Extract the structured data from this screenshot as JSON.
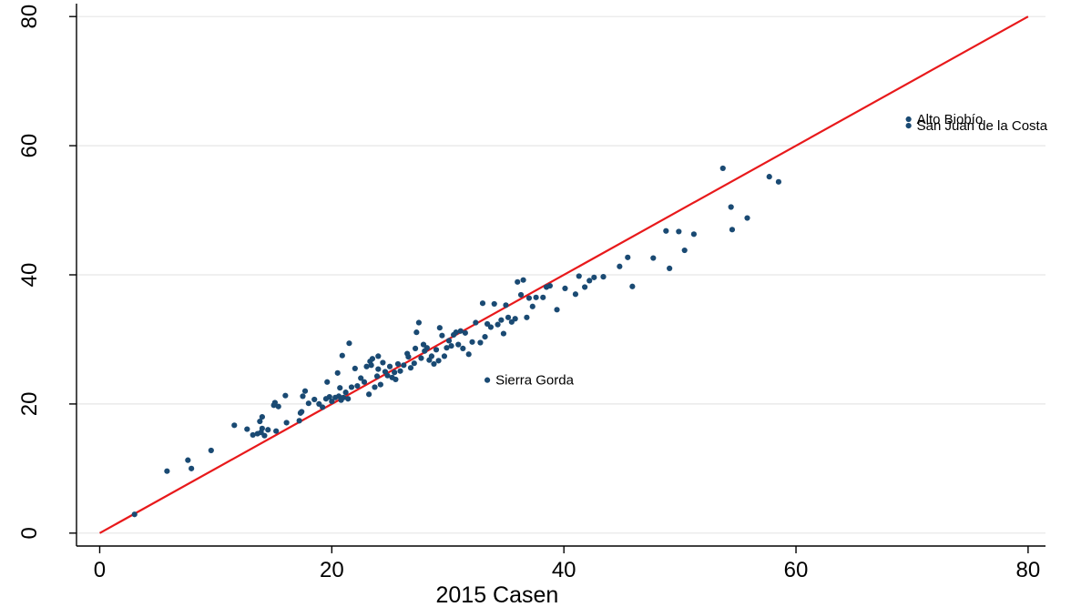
{
  "chart_data": {
    "type": "scatter",
    "title": "",
    "xlabel": "2015 Casen",
    "ylabel": "",
    "xlim": [
      -2,
      81.5
    ],
    "ylim": [
      -2,
      82
    ],
    "x_ticks": [
      0,
      20,
      40,
      60,
      80
    ],
    "y_ticks": [
      0,
      20,
      40,
      60,
      80
    ],
    "x_tick_labels": [
      "0",
      "20",
      "40",
      "60",
      "80"
    ],
    "y_tick_labels": [
      "0",
      "20",
      "40",
      "60",
      "80"
    ],
    "grid": "horizontal",
    "legend": "none",
    "reference_line": {
      "from": [
        0,
        0
      ],
      "to": [
        80,
        80
      ],
      "color": "#e8191b"
    },
    "marker_color": "#1a4a73",
    "annotations": [
      {
        "text": "Alto Biobío",
        "x": 69.7,
        "y": 64.1
      },
      {
        "text": "San Juan de la Costa",
        "x": 69.7,
        "y": 63.1
      },
      {
        "text": "Sierra Gorda",
        "x": 33.4,
        "y": 23.7
      }
    ],
    "points": [
      [
        3.0,
        2.9
      ],
      [
        5.8,
        9.6
      ],
      [
        7.6,
        11.3
      ],
      [
        7.9,
        10.0
      ],
      [
        9.6,
        12.8
      ],
      [
        11.6,
        16.7
      ],
      [
        12.7,
        16.1
      ],
      [
        13.2,
        15.2
      ],
      [
        13.6,
        15.4
      ],
      [
        13.8,
        17.3
      ],
      [
        14.0,
        18.0
      ],
      [
        13.9,
        15.6
      ],
      [
        14.2,
        15.1
      ],
      [
        14.5,
        16.0
      ],
      [
        14.0,
        16.2
      ],
      [
        15.0,
        19.8
      ],
      [
        15.1,
        20.2
      ],
      [
        15.4,
        19.6
      ],
      [
        15.2,
        15.8
      ],
      [
        16.0,
        21.3
      ],
      [
        16.1,
        17.1
      ],
      [
        17.2,
        17.4
      ],
      [
        17.3,
        18.6
      ],
      [
        17.4,
        18.8
      ],
      [
        17.5,
        21.2
      ],
      [
        17.7,
        22.0
      ],
      [
        18.0,
        20.1
      ],
      [
        18.5,
        20.7
      ],
      [
        18.9,
        20.0
      ],
      [
        19.2,
        19.5
      ],
      [
        19.5,
        20.8
      ],
      [
        19.6,
        23.4
      ],
      [
        19.8,
        21.1
      ],
      [
        20.0,
        20.4
      ],
      [
        20.3,
        21.0
      ],
      [
        20.5,
        24.8
      ],
      [
        20.6,
        21.2
      ],
      [
        20.7,
        22.5
      ],
      [
        20.8,
        20.6
      ],
      [
        20.9,
        27.5
      ],
      [
        21.0,
        21.0
      ],
      [
        21.2,
        21.8
      ],
      [
        21.4,
        20.8
      ],
      [
        21.5,
        29.4
      ],
      [
        21.7,
        22.6
      ],
      [
        22.0,
        25.5
      ],
      [
        22.2,
        22.8
      ],
      [
        22.5,
        24.0
      ],
      [
        22.8,
        23.4
      ],
      [
        23.0,
        25.8
      ],
      [
        23.2,
        21.5
      ],
      [
        23.3,
        26.6
      ],
      [
        23.4,
        26.0
      ],
      [
        23.5,
        27.0
      ],
      [
        23.7,
        22.6
      ],
      [
        23.9,
        24.3
      ],
      [
        24.0,
        25.4
      ],
      [
        24.0,
        27.4
      ],
      [
        24.2,
        23.0
      ],
      [
        24.4,
        26.4
      ],
      [
        24.6,
        25.0
      ],
      [
        24.8,
        24.4
      ],
      [
        25.0,
        25.8
      ],
      [
        25.2,
        24.1
      ],
      [
        25.4,
        24.9
      ],
      [
        25.5,
        23.8
      ],
      [
        25.7,
        26.2
      ],
      [
        25.9,
        25.1
      ],
      [
        26.2,
        26.0
      ],
      [
        26.5,
        27.8
      ],
      [
        26.6,
        27.3
      ],
      [
        26.8,
        25.6
      ],
      [
        27.1,
        26.3
      ],
      [
        27.2,
        28.6
      ],
      [
        27.3,
        31.1
      ],
      [
        27.5,
        32.6
      ],
      [
        27.7,
        27.1
      ],
      [
        27.9,
        29.2
      ],
      [
        28.0,
        28.2
      ],
      [
        28.2,
        28.7
      ],
      [
        28.4,
        26.8
      ],
      [
        28.6,
        27.4
      ],
      [
        28.8,
        26.2
      ],
      [
        29.0,
        28.4
      ],
      [
        29.2,
        26.7
      ],
      [
        29.3,
        31.8
      ],
      [
        29.5,
        30.6
      ],
      [
        29.7,
        27.4
      ],
      [
        29.9,
        28.7
      ],
      [
        30.1,
        29.8
      ],
      [
        30.3,
        29.0
      ],
      [
        30.5,
        30.7
      ],
      [
        30.7,
        31.1
      ],
      [
        30.9,
        29.2
      ],
      [
        31.1,
        31.3
      ],
      [
        31.3,
        28.6
      ],
      [
        31.5,
        31.0
      ],
      [
        31.8,
        27.7
      ],
      [
        32.1,
        29.6
      ],
      [
        32.4,
        32.6
      ],
      [
        32.8,
        29.5
      ],
      [
        33.0,
        35.6
      ],
      [
        33.2,
        30.4
      ],
      [
        33.4,
        32.4
      ],
      [
        33.7,
        31.9
      ],
      [
        34.0,
        35.5
      ],
      [
        34.3,
        32.3
      ],
      [
        34.6,
        33.0
      ],
      [
        34.8,
        30.9
      ],
      [
        35.0,
        35.3
      ],
      [
        35.2,
        33.4
      ],
      [
        35.5,
        32.7
      ],
      [
        35.8,
        33.2
      ],
      [
        36.0,
        38.9
      ],
      [
        36.3,
        36.9
      ],
      [
        36.5,
        39.2
      ],
      [
        36.8,
        33.4
      ],
      [
        37.0,
        36.4
      ],
      [
        37.3,
        35.1
      ],
      [
        37.6,
        36.5
      ],
      [
        38.2,
        36.5
      ],
      [
        38.5,
        38.1
      ],
      [
        38.8,
        38.3
      ],
      [
        39.4,
        34.6
      ],
      [
        40.1,
        37.9
      ],
      [
        41.0,
        37.0
      ],
      [
        41.3,
        39.8
      ],
      [
        41.8,
        38.1
      ],
      [
        42.2,
        39.1
      ],
      [
        42.6,
        39.6
      ],
      [
        43.4,
        39.7
      ],
      [
        44.8,
        41.3
      ],
      [
        45.5,
        42.7
      ],
      [
        45.9,
        38.2
      ],
      [
        47.7,
        42.6
      ],
      [
        48.8,
        46.8
      ],
      [
        49.1,
        41.0
      ],
      [
        49.9,
        46.7
      ],
      [
        50.4,
        43.8
      ],
      [
        51.2,
        46.3
      ],
      [
        53.7,
        56.5
      ],
      [
        54.4,
        50.5
      ],
      [
        54.5,
        47.0
      ],
      [
        55.8,
        48.8
      ],
      [
        57.7,
        55.2
      ],
      [
        58.5,
        54.4
      ],
      [
        69.7,
        64.1
      ],
      [
        69.7,
        63.1
      ],
      [
        33.4,
        23.7
      ]
    ]
  }
}
